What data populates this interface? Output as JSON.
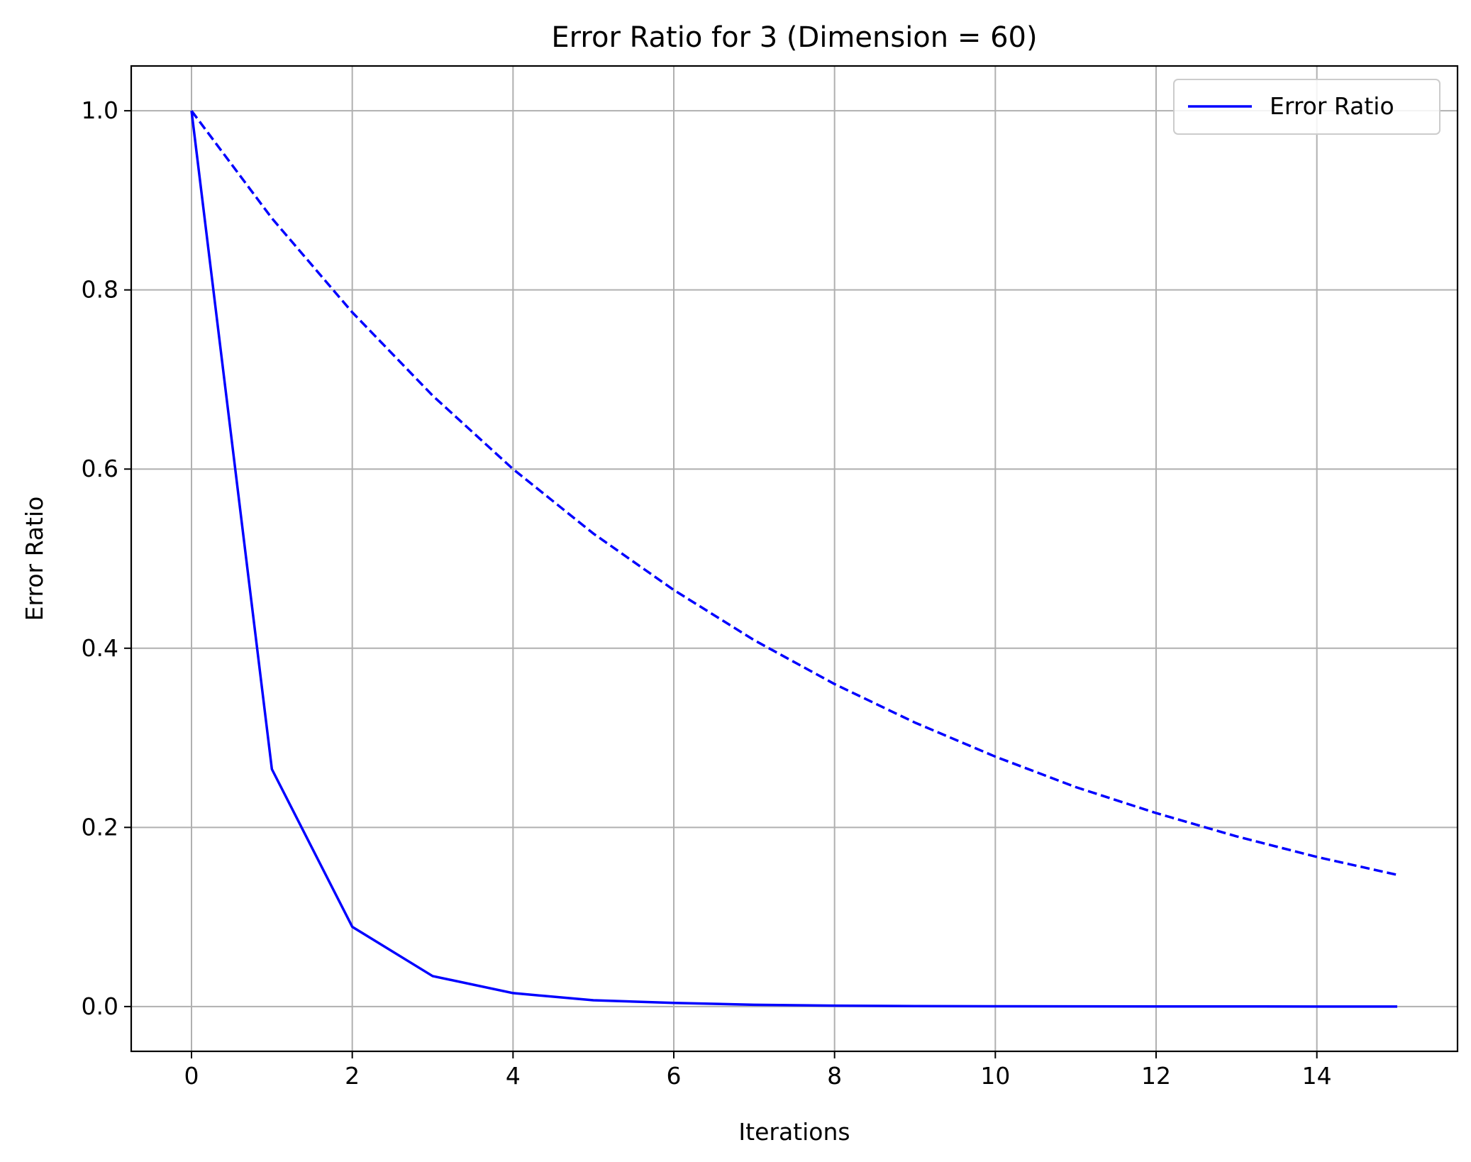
{
  "chart_data": {
    "type": "line",
    "title": "Error Ratio for 3 (Dimension = 60)",
    "xlabel": "Iterations",
    "ylabel": "Error Ratio",
    "xlim": [
      -0.75,
      15.75
    ],
    "ylim": [
      -0.05,
      1.05
    ],
    "xticks": [
      0,
      2,
      4,
      6,
      8,
      10,
      12,
      14
    ],
    "xtick_labels": [
      "0",
      "2",
      "4",
      "6",
      "8",
      "10",
      "12",
      "14"
    ],
    "yticks": [
      0.0,
      0.2,
      0.4,
      0.6,
      0.8,
      1.0
    ],
    "ytick_labels": [
      "0.0",
      "0.2",
      "0.4",
      "0.6",
      "0.8",
      "1.0"
    ],
    "grid": true,
    "legend_position": "top-right",
    "color": "#0000ff",
    "series": [
      {
        "name": "Error Ratio",
        "style": "solid",
        "x": [
          0,
          1,
          2,
          3,
          4,
          5,
          6,
          7,
          8,
          9,
          10,
          11,
          12,
          13,
          14,
          15
        ],
        "y": [
          1.0,
          0.265,
          0.089,
          0.034,
          0.015,
          0.007,
          0.004,
          0.002,
          0.001,
          0.0005,
          0.0003,
          0.0002,
          0.0001,
          0.0001,
          0.0,
          0.0
        ]
      },
      {
        "style": "dashed",
        "x": [
          0,
          1,
          2,
          3,
          4,
          5,
          6,
          7,
          8,
          9,
          10,
          11,
          12,
          13,
          14,
          15
        ],
        "y": [
          1.0,
          0.88,
          0.775,
          0.682,
          0.6,
          0.528,
          0.465,
          0.409,
          0.36,
          0.317,
          0.279,
          0.245,
          0.216,
          0.19,
          0.167,
          0.147
        ]
      }
    ]
  }
}
